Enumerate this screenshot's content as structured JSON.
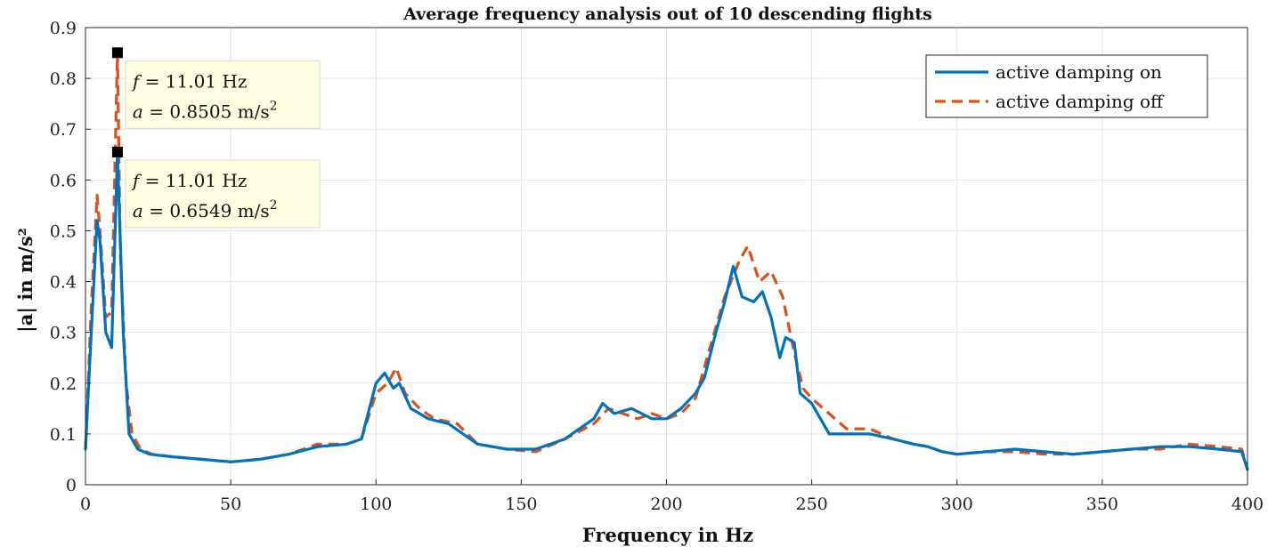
{
  "chart_data": {
    "type": "line",
    "title": "Average frequency analysis out of 10 descending flights",
    "xlabel": "Frequency in Hz",
    "ylabel": "|a| in m/s²",
    "xlim": [
      0,
      400
    ],
    "ylim": [
      0,
      0.9
    ],
    "xticks": [
      0,
      50,
      100,
      150,
      200,
      250,
      300,
      350,
      400
    ],
    "yticks": [
      0,
      0.1,
      0.2,
      0.3,
      0.4,
      0.5,
      0.6,
      0.7,
      0.8,
      0.9
    ],
    "grid": true,
    "legend_position": "top-right",
    "series": [
      {
        "name": "active damping on",
        "color": "#0072BD",
        "style": "solid",
        "x": [
          0,
          2,
          4,
          5,
          7,
          9,
          11.01,
          13,
          15,
          18,
          22,
          30,
          40,
          50,
          60,
          70,
          80,
          90,
          95,
          100,
          103,
          106,
          108,
          112,
          118,
          125,
          135,
          145,
          155,
          165,
          175,
          178,
          182,
          188,
          195,
          200,
          205,
          210,
          213,
          217,
          220,
          223,
          226,
          230,
          233,
          236,
          239,
          241,
          244,
          246,
          250,
          256,
          262,
          270,
          278,
          285,
          290,
          295,
          300,
          310,
          320,
          330,
          340,
          350,
          360,
          370,
          380,
          390,
          398,
          400
        ],
        "y": [
          0.07,
          0.3,
          0.52,
          0.48,
          0.3,
          0.27,
          0.6549,
          0.3,
          0.1,
          0.07,
          0.06,
          0.055,
          0.05,
          0.045,
          0.05,
          0.06,
          0.075,
          0.08,
          0.09,
          0.2,
          0.22,
          0.19,
          0.2,
          0.15,
          0.13,
          0.12,
          0.08,
          0.07,
          0.07,
          0.09,
          0.13,
          0.16,
          0.14,
          0.15,
          0.13,
          0.13,
          0.15,
          0.18,
          0.21,
          0.3,
          0.36,
          0.43,
          0.37,
          0.36,
          0.38,
          0.33,
          0.25,
          0.29,
          0.28,
          0.18,
          0.16,
          0.1,
          0.1,
          0.1,
          0.09,
          0.08,
          0.075,
          0.065,
          0.06,
          0.065,
          0.07,
          0.065,
          0.06,
          0.065,
          0.07,
          0.075,
          0.075,
          0.07,
          0.065,
          0.03
        ]
      },
      {
        "name": "active damping off",
        "color": "#D95319",
        "style": "dashed",
        "x": [
          0,
          2,
          4,
          5,
          7,
          9,
          11.01,
          12,
          14,
          16,
          19,
          23,
          30,
          40,
          50,
          60,
          70,
          80,
          90,
          95,
          100,
          104,
          107,
          110,
          115,
          120,
          128,
          135,
          145,
          155,
          165,
          175,
          180,
          185,
          190,
          195,
          200,
          205,
          210,
          215,
          220,
          225,
          228,
          232,
          236,
          240,
          244,
          247,
          250,
          256,
          262,
          270,
          278,
          285,
          290,
          295,
          300,
          310,
          320,
          330,
          340,
          350,
          360,
          370,
          380,
          390,
          398,
          400
        ],
        "y": [
          0.07,
          0.35,
          0.57,
          0.5,
          0.33,
          0.34,
          0.8505,
          0.45,
          0.2,
          0.1,
          0.07,
          0.06,
          0.055,
          0.05,
          0.045,
          0.05,
          0.06,
          0.08,
          0.08,
          0.09,
          0.18,
          0.2,
          0.23,
          0.18,
          0.15,
          0.13,
          0.12,
          0.08,
          0.07,
          0.065,
          0.09,
          0.12,
          0.15,
          0.14,
          0.13,
          0.14,
          0.13,
          0.14,
          0.17,
          0.27,
          0.37,
          0.44,
          0.47,
          0.4,
          0.42,
          0.37,
          0.26,
          0.19,
          0.17,
          0.14,
          0.11,
          0.11,
          0.09,
          0.08,
          0.075,
          0.065,
          0.06,
          0.065,
          0.065,
          0.06,
          0.06,
          0.065,
          0.07,
          0.07,
          0.08,
          0.075,
          0.07,
          0.03
        ]
      }
    ],
    "datatips": [
      {
        "f_label": "f",
        "eq": "=",
        "f_value": "11.01 Hz",
        "a_label": "a",
        "a_value": "0.8505 m/s",
        "a_exp": "2",
        "x": 11.01,
        "y": 0.8505
      },
      {
        "f_label": "f",
        "eq": "=",
        "f_value": "11.01 Hz",
        "a_label": "a",
        "a_value": "0.6549 m/s",
        "a_exp": "2",
        "x": 11.01,
        "y": 0.6549
      }
    ]
  }
}
